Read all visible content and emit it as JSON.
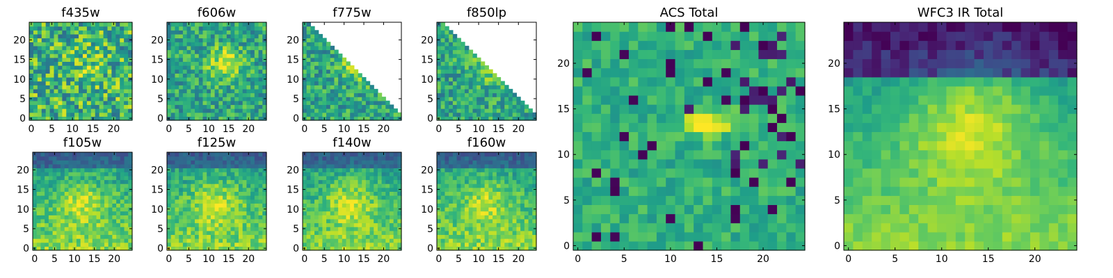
{
  "chart_data": [
    {
      "type": "heatmap",
      "title": "f435w",
      "grid_size": 25,
      "pattern": "noise",
      "masked": false,
      "xticks": [
        0,
        5,
        10,
        15,
        20
      ],
      "yticks": [
        0,
        5,
        10,
        15,
        20
      ],
      "xlim": [
        0,
        24
      ],
      "ylim": [
        0,
        24
      ],
      "seed": 11
    },
    {
      "type": "heatmap",
      "title": "f606w",
      "grid_size": 25,
      "pattern": "blob",
      "masked": false,
      "xticks": [
        0,
        5,
        10,
        15,
        20
      ],
      "yticks": [
        0,
        5,
        10,
        15,
        20
      ],
      "xlim": [
        0,
        24
      ],
      "ylim": [
        0,
        24
      ],
      "seed": 23
    },
    {
      "type": "heatmap",
      "title": "f775w",
      "grid_size": 25,
      "pattern": "blob",
      "masked": true,
      "xticks": [
        0,
        5,
        10,
        15,
        20
      ],
      "yticks": [
        0,
        5,
        10,
        15,
        20
      ],
      "xlim": [
        0,
        24
      ],
      "ylim": [
        0,
        24
      ],
      "seed": 37
    },
    {
      "type": "heatmap",
      "title": "f850lp",
      "grid_size": 25,
      "pattern": "blob",
      "masked": true,
      "xticks": [
        0,
        5,
        10,
        15,
        20
      ],
      "yticks": [
        0,
        5,
        10,
        15,
        20
      ],
      "xlim": [
        0,
        24
      ],
      "ylim": [
        0,
        24
      ],
      "seed": 41
    },
    {
      "type": "heatmap",
      "title": "f105w",
      "grid_size": 25,
      "pattern": "ir",
      "masked": false,
      "xticks": [
        0,
        5,
        10,
        15,
        20
      ],
      "yticks": [
        0,
        5,
        10,
        15,
        20
      ],
      "xlim": [
        0,
        24
      ],
      "ylim": [
        0,
        24
      ],
      "seed": 53
    },
    {
      "type": "heatmap",
      "title": "f125w",
      "grid_size": 25,
      "pattern": "ir",
      "masked": false,
      "xticks": [
        0,
        5,
        10,
        15,
        20
      ],
      "yticks": [
        0,
        5,
        10,
        15,
        20
      ],
      "xlim": [
        0,
        24
      ],
      "ylim": [
        0,
        24
      ],
      "seed": 67
    },
    {
      "type": "heatmap",
      "title": "f140w",
      "grid_size": 25,
      "pattern": "ir",
      "masked": false,
      "xticks": [
        0,
        5,
        10,
        15,
        20
      ],
      "yticks": [
        0,
        5,
        10,
        15,
        20
      ],
      "xlim": [
        0,
        24
      ],
      "ylim": [
        0,
        24
      ],
      "seed": 71
    },
    {
      "type": "heatmap",
      "title": "f160w",
      "grid_size": 25,
      "pattern": "ir",
      "masked": false,
      "xticks": [
        0,
        5,
        10,
        15,
        20
      ],
      "yticks": [
        0,
        5,
        10,
        15,
        20
      ],
      "xlim": [
        0,
        24
      ],
      "ylim": [
        0,
        24
      ],
      "seed": 83
    },
    {
      "type": "heatmap",
      "title": "ACS Total",
      "grid_size": 25,
      "pattern": "acs_total",
      "masked": false,
      "xticks": [
        0,
        5,
        10,
        15,
        20
      ],
      "yticks": [
        0,
        5,
        10,
        15,
        20
      ],
      "xlim": [
        0,
        24
      ],
      "ylim": [
        0,
        24
      ],
      "seed": 97
    },
    {
      "type": "heatmap",
      "title": "WFC3 IR Total",
      "grid_size": 25,
      "pattern": "ir_total",
      "masked": false,
      "xticks": [
        0,
        5,
        10,
        15,
        20
      ],
      "yticks": [
        0,
        5,
        10,
        15,
        20
      ],
      "xlim": [
        0,
        24
      ],
      "ylim": [
        0,
        24
      ],
      "seed": 101
    }
  ],
  "colormap": {
    "name": "viridis",
    "stops": [
      "#440154",
      "#482878",
      "#3e4989",
      "#31688e",
      "#26828e",
      "#1f9e89",
      "#35b779",
      "#6ece58",
      "#b5de2b",
      "#fde725"
    ]
  }
}
